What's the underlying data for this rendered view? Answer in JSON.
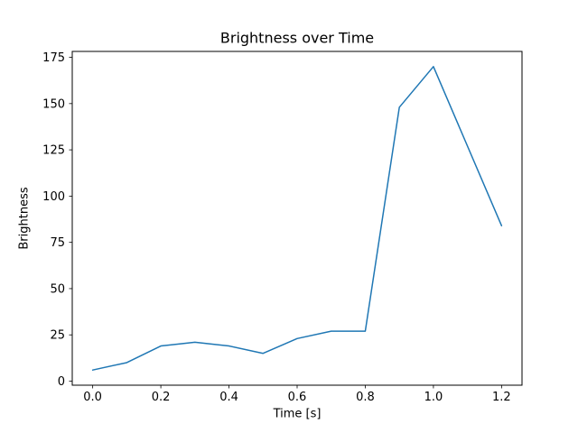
{
  "chart_data": {
    "type": "line",
    "title": "Brightness over Time",
    "xlabel": "Time [s]",
    "ylabel": "Brightness",
    "x": [
      0.0,
      0.1,
      0.2,
      0.3,
      0.4,
      0.5,
      0.6,
      0.7,
      0.8,
      0.9,
      1.0,
      1.2
    ],
    "y": [
      6,
      10,
      19,
      21,
      19,
      15,
      23,
      27,
      27,
      148,
      170,
      84
    ],
    "xlim": [
      -0.06,
      1.26
    ],
    "ylim": [
      -2.2,
      178.2
    ],
    "xticks": [
      0.0,
      0.2,
      0.4,
      0.6,
      0.8,
      1.0,
      1.2
    ],
    "xtick_labels": [
      "0.0",
      "0.2",
      "0.4",
      "0.6",
      "0.8",
      "1.0",
      "1.2"
    ],
    "yticks": [
      0,
      25,
      50,
      75,
      100,
      125,
      150,
      175
    ],
    "ytick_labels": [
      "0",
      "25",
      "50",
      "75",
      "100",
      "125",
      "150",
      "175"
    ],
    "line_color": "#1f77b4",
    "axis_color": "#000000",
    "background_color": "#ffffff",
    "grid": false,
    "legend_position": "none"
  }
}
